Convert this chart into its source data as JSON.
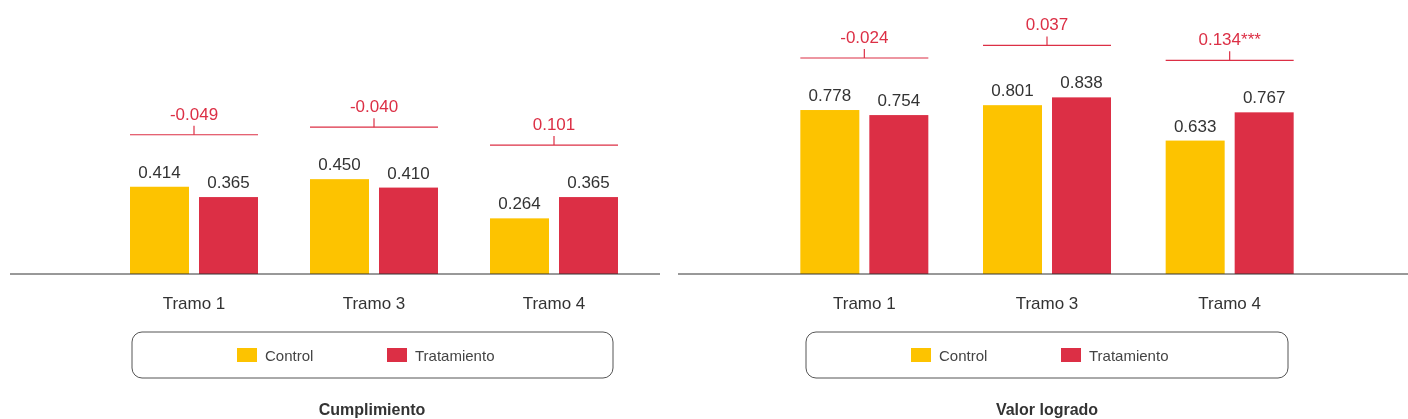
{
  "chart_data": [
    {
      "type": "bar",
      "title": "Cumplimiento",
      "categories": [
        "Tramo 1",
        "Tramo 3",
        "Tramo 4"
      ],
      "series": [
        {
          "name": "Control",
          "color": "#fdc300",
          "values": [
            0.414,
            0.45,
            0.264
          ],
          "value_labels": [
            "0.414",
            "0.450",
            "0.264"
          ]
        },
        {
          "name": "Tratamiento",
          "color": "#dc2f45",
          "values": [
            0.365,
            0.41,
            0.365
          ],
          "value_labels": [
            "0.365",
            "0.410",
            "0.365"
          ]
        }
      ],
      "ylim": [
        0,
        1.3
      ],
      "tick_labels": "x",
      "legend": "bottom",
      "annotations": [
        "-0.049",
        "-0.040",
        "0.101"
      ]
    },
    {
      "type": "bar",
      "title": "Valor logrado",
      "categories": [
        "Tramo 1",
        "Tramo 3",
        "Tramo 4"
      ],
      "series": [
        {
          "name": "Control",
          "color": "#fdc300",
          "values": [
            0.778,
            0.801,
            0.633
          ],
          "value_labels": [
            "0.778",
            "0.801",
            "0.633"
          ]
        },
        {
          "name": "Tratamiento",
          "color": "#dc2f45",
          "values": [
            0.754,
            0.838,
            0.767
          ],
          "value_labels": [
            "0.754",
            "0.838",
            "0.767"
          ]
        }
      ],
      "ylim": [
        0,
        1.3
      ],
      "tick_labels": "x",
      "legend": "bottom",
      "annotations": [
        "-0.024",
        "0.037",
        "0.134***"
      ]
    }
  ]
}
